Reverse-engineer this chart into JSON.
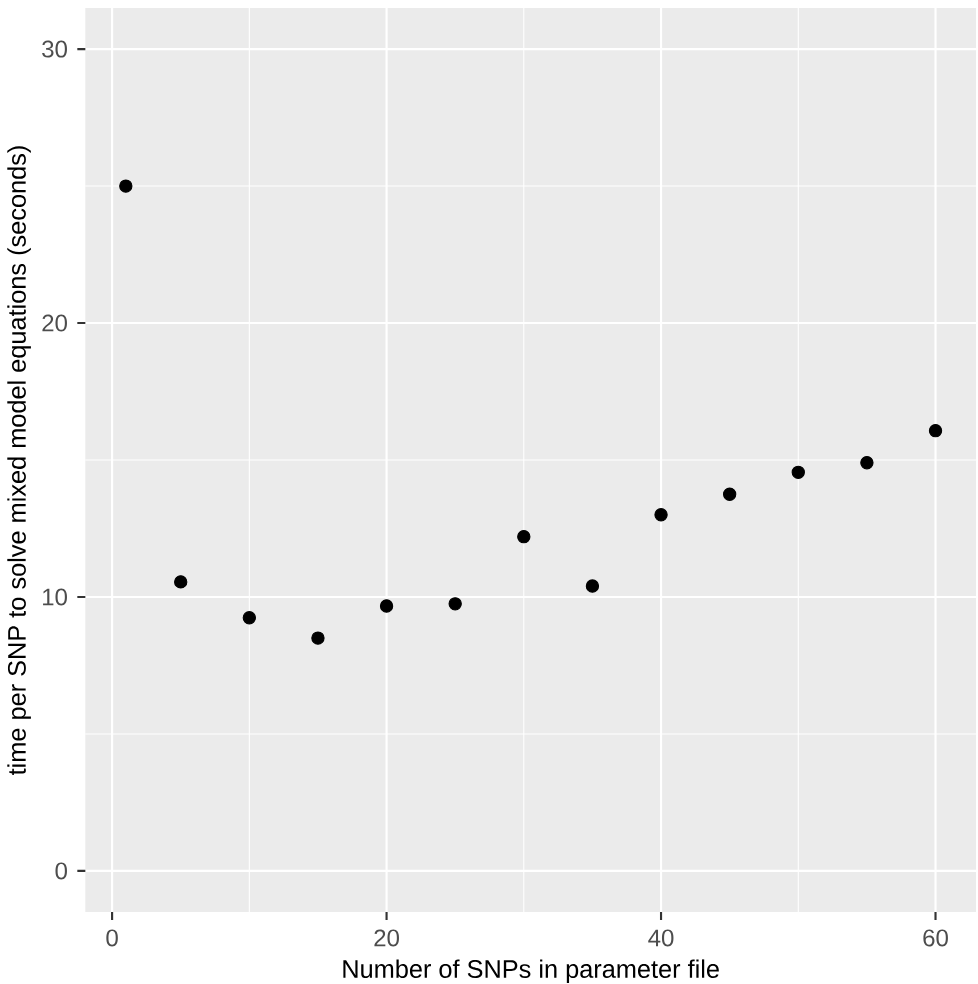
{
  "chart_data": {
    "type": "scatter",
    "xlabel": "Number of SNPs in parameter file",
    "ylabel": "time per SNP to solve mixed model equations (seconds)",
    "x": [
      1,
      5,
      10,
      15,
      20,
      25,
      30,
      35,
      40,
      45,
      50,
      55,
      60
    ],
    "values": [
      25.0,
      10.55,
      9.24,
      8.5,
      9.67,
      9.75,
      12.2,
      10.4,
      13.0,
      13.75,
      14.55,
      14.9,
      16.07
    ],
    "color": "#000000",
    "marker": "circle",
    "xlim": [
      -1.95,
      62.95
    ],
    "ylim": [
      -1.5,
      31.5
    ],
    "xticks": [
      0,
      20,
      40,
      60
    ],
    "yticks": [
      0,
      10,
      20,
      30
    ],
    "grid": true
  }
}
